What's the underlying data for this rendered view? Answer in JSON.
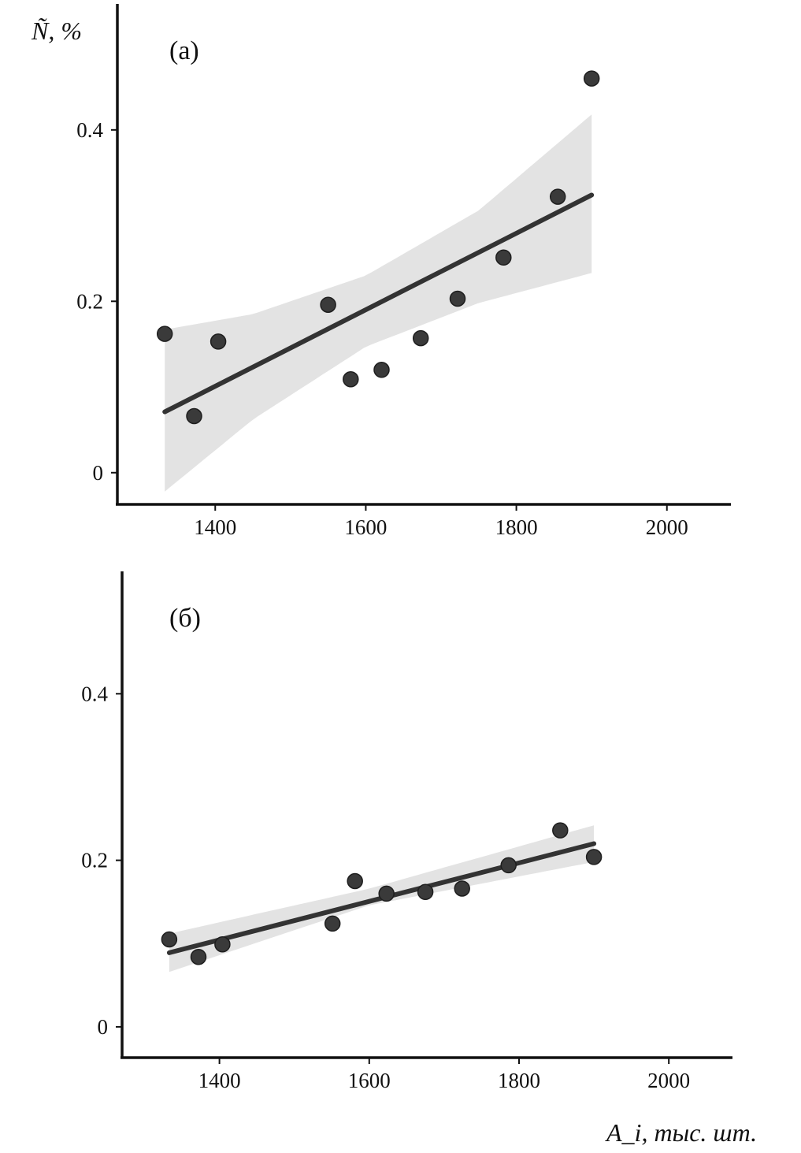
{
  "chart_data": [
    {
      "type": "scatter",
      "panel_label": "(а)",
      "ylabel": "Ñ, %",
      "xlabel": "",
      "xlim": [
        1270,
        2085
      ],
      "ylim": [
        -0.037,
        0.547
      ],
      "x_ticks": [
        "1400",
        "1600",
        "1800",
        "2000"
      ],
      "y_ticks": [
        "0",
        "0.2",
        "0.4"
      ],
      "grid": false,
      "series": [
        {
          "x": [
            1333,
            1372,
            1404,
            1550,
            1580,
            1621,
            1673,
            1722,
            1783,
            1855,
            1900
          ],
          "y": [
            0.162,
            0.066,
            0.153,
            0.196,
            0.109,
            0.12,
            0.157,
            0.203,
            0.251,
            0.322,
            0.46
          ]
        }
      ],
      "fit_line": {
        "x": [
          1333,
          1900
        ],
        "y": [
          0.071,
          0.324
        ]
      },
      "confidence_band": {
        "x": [
          1333,
          1450,
          1600,
          1750,
          1900
        ],
        "lower": [
          -0.022,
          0.062,
          0.147,
          0.198,
          0.233
        ],
        "upper": [
          0.167,
          0.185,
          0.23,
          0.306,
          0.418
        ]
      },
      "colors": {
        "points": "#3a3a3a",
        "line": "#333333",
        "band": "#e3e3e3",
        "axis": "#111111"
      }
    },
    {
      "type": "scatter",
      "panel_label": "(б)",
      "ylabel": "",
      "xlabel": "A_i, тыс. шт.",
      "xlim": [
        1270,
        2085
      ],
      "ylim": [
        -0.037,
        0.547
      ],
      "x_ticks": [
        "1400",
        "1600",
        "1800",
        "2000"
      ],
      "y_ticks": [
        "0",
        "0.2",
        "0.4"
      ],
      "grid": false,
      "series": [
        {
          "x": [
            1333,
            1372,
            1404,
            1551,
            1581,
            1623,
            1675,
            1724,
            1786,
            1855,
            1900
          ],
          "y": [
            0.105,
            0.084,
            0.099,
            0.124,
            0.175,
            0.16,
            0.162,
            0.166,
            0.194,
            0.236,
            0.204
          ]
        }
      ],
      "fit_line": {
        "x": [
          1333,
          1900
        ],
        "y": [
          0.089,
          0.22
        ]
      },
      "confidence_band": {
        "x": [
          1333,
          1600,
          1900
        ],
        "lower": [
          0.066,
          0.146,
          0.198
        ],
        "upper": [
          0.112,
          0.166,
          0.242
        ]
      },
      "colors": {
        "points": "#3a3a3a",
        "line": "#333333",
        "band": "#e3e3e3",
        "axis": "#111111"
      }
    }
  ]
}
